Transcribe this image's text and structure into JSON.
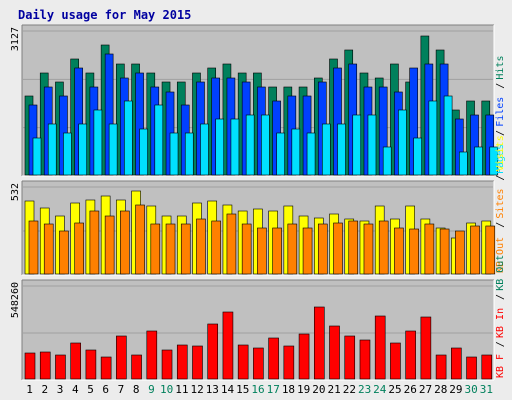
{
  "title": "Daily usage for May 2015",
  "colors": {
    "pages": "#00e0ff",
    "files": "#0040ff",
    "hits": "#00805c",
    "visits": "#ffff00",
    "sites": "#ff8000",
    "kb_in": "#ff0000",
    "frame_bg": "#ececec",
    "plot_bg": "#c0c0c0",
    "title": "#0000a0",
    "weekday_label": "#000000",
    "weekend_label": "#00805c"
  },
  "chart_data": [
    {
      "type": "bar",
      "panel": "top",
      "ymax_label": "3127",
      "ylim": [
        0,
        3127
      ],
      "categories": [
        "1",
        "2",
        "3",
        "4",
        "5",
        "6",
        "7",
        "8",
        "9",
        "10",
        "11",
        "12",
        "13",
        "14",
        "15",
        "16",
        "17",
        "18",
        "19",
        "20",
        "21",
        "22",
        "23",
        "24",
        "25",
        "26",
        "27",
        "28",
        "29",
        "30",
        "31"
      ],
      "weekend_days": [
        "9",
        "10",
        "16",
        "17",
        "23",
        "24",
        "30",
        "31"
      ],
      "legend": [
        {
          "key": "pages",
          "label": "Pages"
        },
        {
          "key": "files",
          "label": "Files"
        },
        {
          "key": "hits",
          "label": "Hits"
        }
      ],
      "series": [
        {
          "name": "Hits",
          "key": "hits",
          "values": [
            1700,
            2200,
            2000,
            2500,
            2200,
            2800,
            2400,
            2400,
            2200,
            2000,
            2000,
            2200,
            2300,
            2400,
            2200,
            2200,
            1900,
            1900,
            1900,
            2100,
            2500,
            2700,
            2200,
            2100,
            2400,
            2000,
            3000,
            2700,
            1400,
            1600,
            1600
          ]
        },
        {
          "name": "Files",
          "key": "files",
          "values": [
            1500,
            1900,
            1700,
            2300,
            1900,
            2600,
            2100,
            2200,
            1900,
            1800,
            1500,
            2000,
            2100,
            2100,
            2000,
            1900,
            1600,
            1700,
            1700,
            2000,
            2300,
            2400,
            1900,
            1900,
            1800,
            2300,
            2400,
            2400,
            1200,
            1300,
            1300
          ]
        },
        {
          "name": "Pages",
          "key": "pages",
          "values": [
            800,
            1100,
            900,
            1100,
            1400,
            1100,
            1600,
            1000,
            1500,
            900,
            900,
            1100,
            1200,
            1200,
            1300,
            1300,
            900,
            1000,
            900,
            1100,
            1100,
            1300,
            1300,
            600,
            1400,
            800,
            1600,
            1700,
            500,
            600,
            600
          ]
        }
      ]
    },
    {
      "type": "bar",
      "panel": "middle",
      "ymax_label": "532",
      "ylim": [
        0,
        532
      ],
      "categories": [
        "1",
        "2",
        "3",
        "4",
        "5",
        "6",
        "7",
        "8",
        "9",
        "10",
        "11",
        "12",
        "13",
        "14",
        "15",
        "16",
        "17",
        "18",
        "19",
        "20",
        "21",
        "22",
        "23",
        "24",
        "25",
        "26",
        "27",
        "28",
        "29",
        "30",
        "31"
      ],
      "legend": [
        {
          "key": "sites",
          "label": "Sites"
        },
        {
          "key": "visits",
          "label": "Visits"
        }
      ],
      "series": [
        {
          "name": "Visits",
          "key": "visits",
          "values": [
            440,
            400,
            350,
            430,
            450,
            470,
            450,
            500,
            410,
            350,
            350,
            430,
            440,
            420,
            380,
            390,
            380,
            410,
            350,
            340,
            360,
            330,
            320,
            410,
            330,
            410,
            330,
            280,
            220,
            310,
            320
          ]
        },
        {
          "name": "Sites",
          "key": "sites",
          "values": [
            320,
            300,
            260,
            310,
            380,
            350,
            380,
            420,
            300,
            300,
            300,
            330,
            320,
            360,
            300,
            280,
            280,
            300,
            280,
            300,
            310,
            320,
            300,
            320,
            280,
            270,
            300,
            270,
            260,
            290,
            290
          ]
        }
      ]
    },
    {
      "type": "bar",
      "panel": "bottom",
      "ymax_label": "548260",
      "ylim": [
        0,
        548260
      ],
      "categories": [
        "1",
        "2",
        "3",
        "4",
        "5",
        "6",
        "7",
        "8",
        "9",
        "10",
        "11",
        "12",
        "13",
        "14",
        "15",
        "16",
        "17",
        "18",
        "19",
        "20",
        "21",
        "22",
        "23",
        "24",
        "25",
        "26",
        "27",
        "28",
        "29",
        "30",
        "31"
      ],
      "legend": [
        {
          "key": "kb_in",
          "label": "KB In"
        }
      ],
      "series": [
        {
          "name": "KB In",
          "key": "kb_in",
          "values": [
            150000,
            155000,
            140000,
            210000,
            170000,
            130000,
            250000,
            140000,
            280000,
            170000,
            200000,
            195000,
            320000,
            390000,
            200000,
            180000,
            240000,
            190000,
            260000,
            420000,
            310000,
            250000,
            230000,
            370000,
            210000,
            280000,
            360000,
            140000,
            180000,
            130000,
            140000
          ]
        }
      ]
    }
  ],
  "legend_labels": {
    "top": [
      "Pages",
      "Files",
      "Hits"
    ],
    "middle": [
      "KB Out",
      "Sites",
      "Visits"
    ],
    "bottom": [
      "KB F",
      "KB In",
      "KB Out"
    ]
  }
}
